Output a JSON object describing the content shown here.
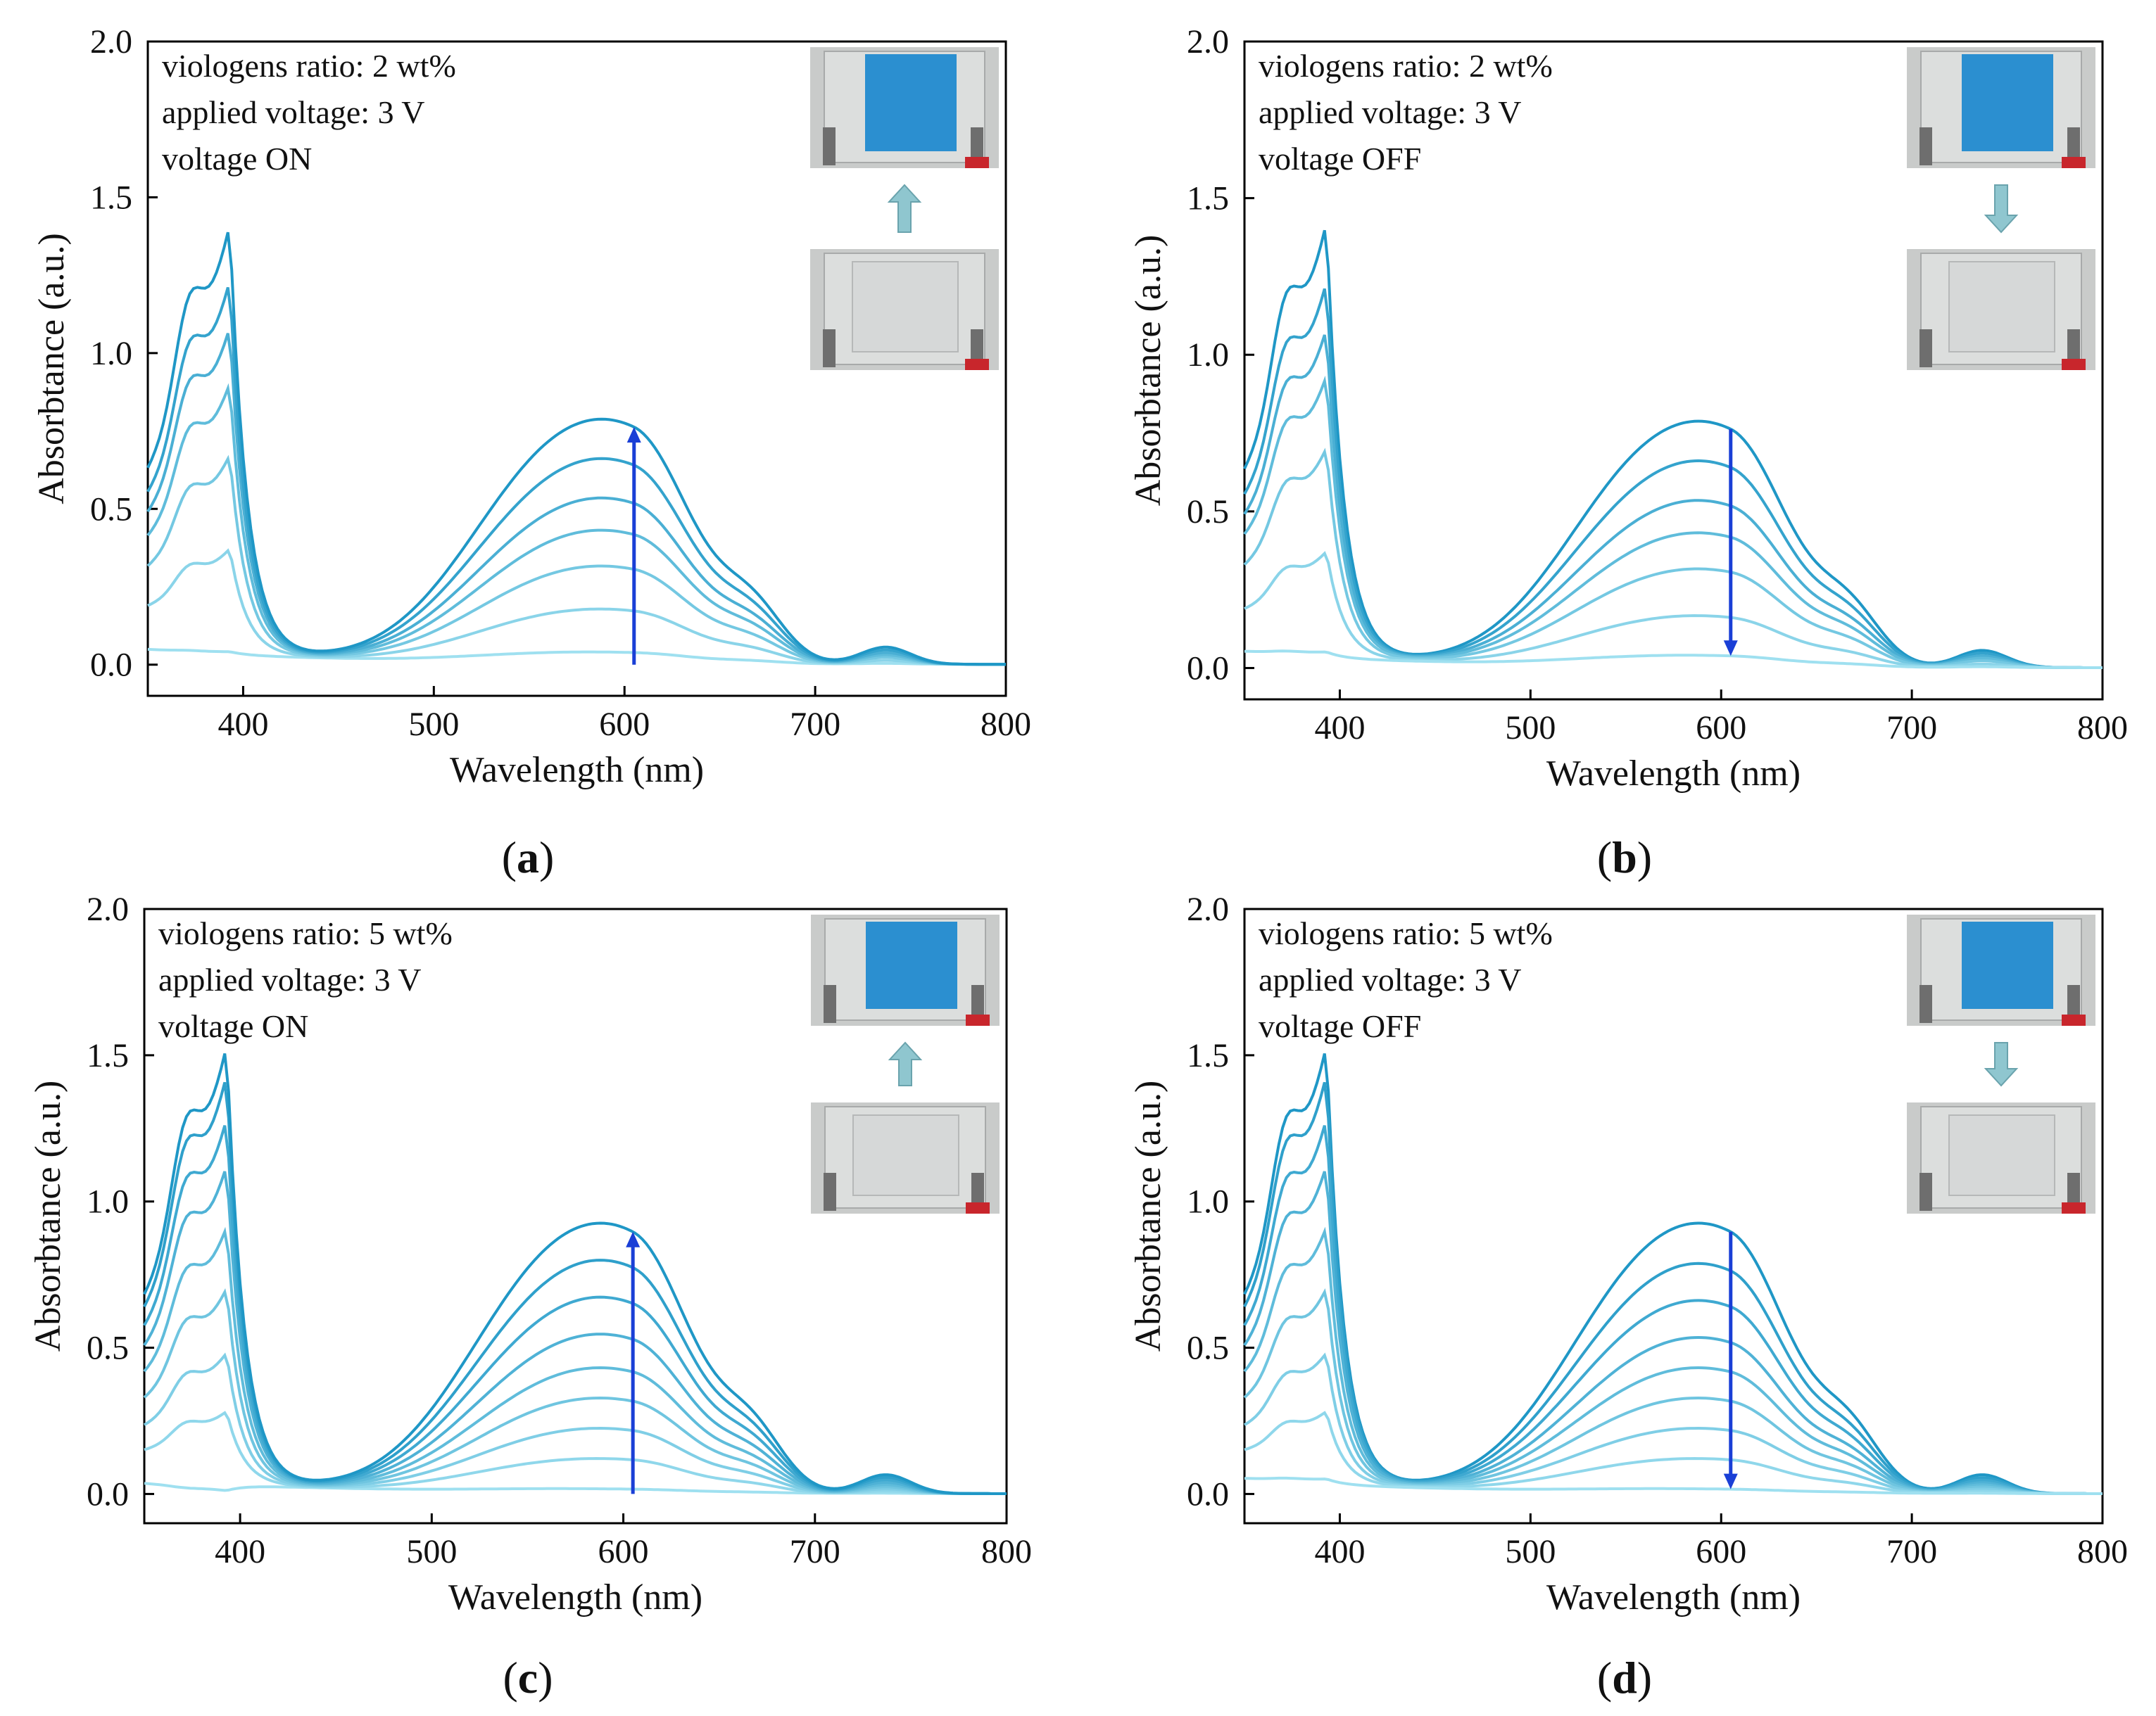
{
  "colors": {
    "series_light": "#9fe0f0",
    "series_dark": "#1f97c6",
    "guide_arrow": "#1a3fd6",
    "photo_arrow": "#8fc6cf",
    "device_blue": "#2b8fd0",
    "device_clear": "#d6d8d8"
  },
  "x_axis": {
    "label": "Wavelength (nm)",
    "ticks": [
      "400",
      "500",
      "600",
      "700",
      "800"
    ]
  },
  "y_axis": {
    "label": "Absorbtance (a.u.)",
    "ticks": [
      "0.0",
      "0.5",
      "1.0",
      "1.5",
      "2.0"
    ]
  },
  "chart_data": [
    {
      "panel": "a",
      "type": "line",
      "annotations": [
        "viologens ratio: 2 wt%",
        "applied voltage: 3 V",
        "voltage ON"
      ],
      "inset_arrow": "up",
      "trend_arrow": "up",
      "x_range": [
        350,
        800
      ],
      "ylim": [
        -0.1,
        2.0
      ],
      "xlabel": "Wavelength (nm)",
      "ylabel": "Absorbtance (a.u.)",
      "series_peak_values": [
        0.03,
        0.15,
        0.27,
        0.37,
        0.46,
        0.57,
        0.68
      ],
      "series_uv_peak_values": [
        0.06,
        0.39,
        0.69,
        0.92,
        1.1,
        1.25,
        1.43
      ],
      "features": {
        "uv_peak_nm": 393,
        "vis_peak_nm": 605,
        "vis_shoulder_nm": 560,
        "secondary_peak_nm": 665,
        "minor_peak_nm": 737
      }
    },
    {
      "panel": "b",
      "type": "line",
      "annotations": [
        "viologens ratio: 2 wt%",
        "applied voltage: 3 V",
        "voltage OFF"
      ],
      "inset_arrow": "down",
      "trend_arrow": "down",
      "x_range": [
        350,
        800
      ],
      "ylim": [
        -0.1,
        2.0
      ],
      "xlabel": "Wavelength (nm)",
      "ylabel": "Absorbtance (a.u.)",
      "series_peak_values": [
        0.68,
        0.57,
        0.46,
        0.37,
        0.27,
        0.14,
        0.03
      ],
      "series_uv_peak_values": [
        1.44,
        1.25,
        1.1,
        0.95,
        0.72,
        0.39,
        0.07
      ],
      "features": {
        "uv_peak_nm": 393,
        "vis_peak_nm": 605,
        "vis_shoulder_nm": 560,
        "secondary_peak_nm": 665,
        "minor_peak_nm": 737
      }
    },
    {
      "panel": "c",
      "type": "line",
      "annotations": [
        "viologens ratio: 5 wt%",
        "applied voltage: 3 V",
        "voltage ON"
      ],
      "inset_arrow": "up",
      "trend_arrow": "up",
      "x_range": [
        350,
        800
      ],
      "ylim": [
        -0.1,
        2.0
      ],
      "xlabel": "Wavelength (nm)",
      "ylabel": "Absorbtance (a.u.)",
      "series_peak_values": [
        0.01,
        0.1,
        0.19,
        0.28,
        0.37,
        0.47,
        0.58,
        0.69,
        0.8
      ],
      "series_uv_peak_values": [
        0.03,
        0.3,
        0.5,
        0.72,
        0.93,
        1.14,
        1.3,
        1.45,
        1.55
      ],
      "features": {
        "uv_peak_nm": 393,
        "vis_peak_nm": 605,
        "vis_shoulder_nm": 560,
        "secondary_peak_nm": 665,
        "minor_peak_nm": 737
      }
    },
    {
      "panel": "d",
      "type": "line",
      "annotations": [
        "viologens ratio: 5 wt%",
        "applied voltage: 3 V",
        "voltage OFF"
      ],
      "inset_arrow": "down",
      "trend_arrow": "down",
      "x_range": [
        350,
        800
      ],
      "ylim": [
        -0.1,
        2.0
      ],
      "xlabel": "Wavelength (nm)",
      "ylabel": "Absorbtance (a.u.)",
      "series_peak_values": [
        0.8,
        0.68,
        0.57,
        0.46,
        0.37,
        0.28,
        0.19,
        0.1,
        0.01
      ],
      "series_uv_peak_values": [
        1.55,
        1.45,
        1.3,
        1.14,
        0.93,
        0.72,
        0.5,
        0.3,
        0.07
      ],
      "features": {
        "uv_peak_nm": 393,
        "vis_peak_nm": 605,
        "vis_shoulder_nm": 560,
        "secondary_peak_nm": 665,
        "minor_peak_nm": 737
      }
    }
  ],
  "panel_labels": [
    "a",
    "b",
    "c",
    "d"
  ]
}
